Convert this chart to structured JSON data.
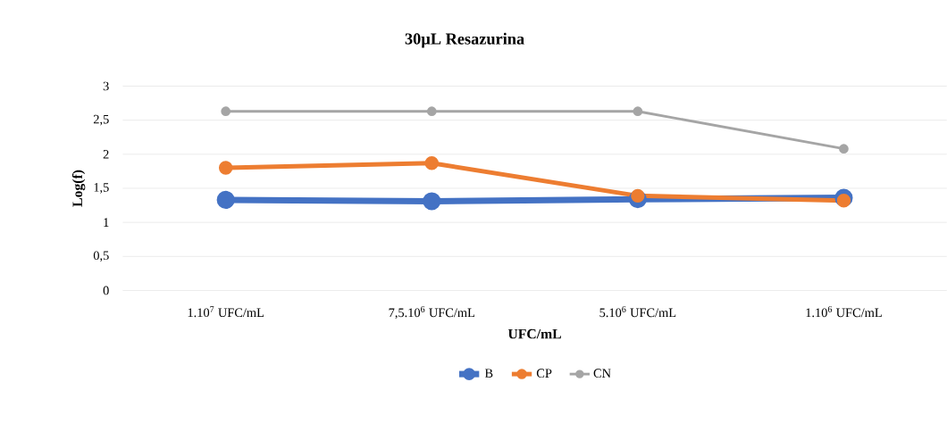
{
  "chart_data": {
    "type": "line",
    "title": "**30µL Resazurina**",
    "categories": [
      "1.10$^{7}$ UFC/mL",
      "7,5.10$^{6}$ UFC/mL",
      "5.10$^{6}$ UFC/mL",
      "1.10$^{6}$ UFC/mL"
    ],
    "xlabel": "UFC/mL",
    "ylabel": "Log(f)",
    "series": [
      {
        "name": "B",
        "color": "#4472c4",
        "values": [
          1.33,
          1.31,
          1.34,
          1.36
        ]
      },
      {
        "name": "CP",
        "color": "#ed7d31",
        "values": [
          1.8,
          1.87,
          1.39,
          1.32
        ]
      },
      {
        "name": "CN",
        "color": "#a5a5a5",
        "values": [
          2.63,
          2.63,
          2.63,
          2.08
        ]
      }
    ],
    "ylim": [
      0,
      3
    ],
    "yticks": [
      0,
      {
        "value": 0.5,
        "label": "0,5"
      },
      1,
      {
        "value": 1.5,
        "label": "1,5"
      },
      2,
      {
        "value": 2.5,
        "label": "2,5"
      },
      3
    ],
    "grid": "y",
    "legend": "bottom",
    "marker": "circle",
    "line_style": "solid"
  }
}
